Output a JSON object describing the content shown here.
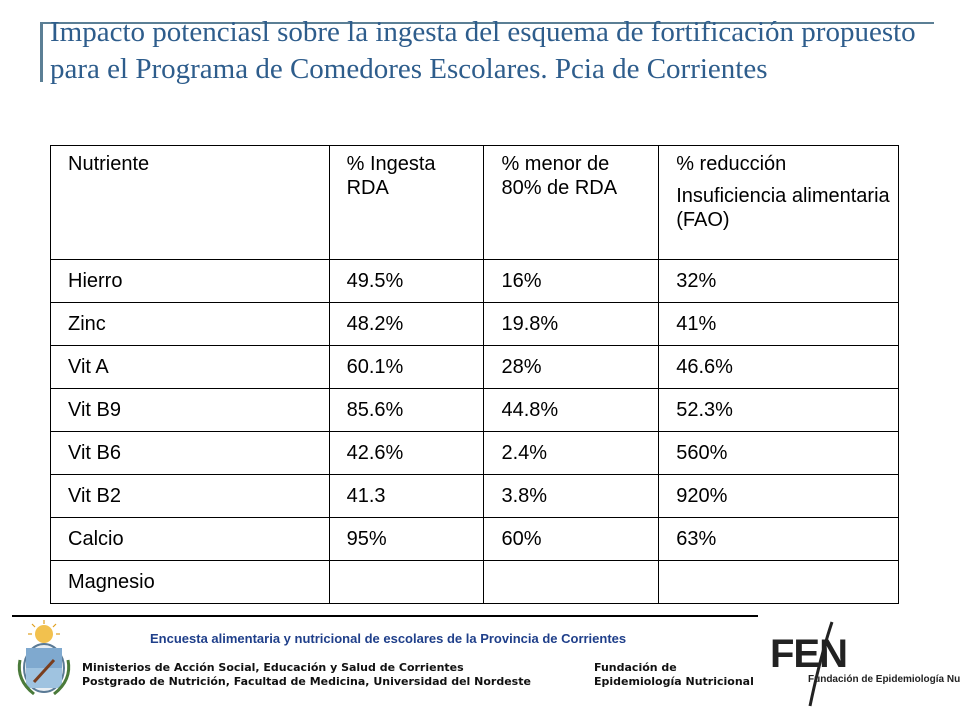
{
  "title": "Impacto potenciasl sobre la ingesta del esquema de fortificación propuesto para el Programa de Comedores Escolares. Pcia de Corrientes",
  "table": {
    "headers": {
      "c1": "Nutriente",
      "c2a": "% Ingesta",
      "c2b": "RDA",
      "c3a": "% menor de",
      "c3b": "80% de RDA",
      "c4a": "% reducción",
      "c4b": "Insuficiencia alimentaria (FAO)"
    },
    "rows": [
      [
        "Hierro",
        "49.5%",
        "16%",
        "32%"
      ],
      [
        "Zinc",
        "48.2%",
        "19.8%",
        "41%"
      ],
      [
        "Vit A",
        "60.1%",
        "28%",
        "46.6%"
      ],
      [
        "Vit B9",
        "85.6%",
        "44.8%",
        "52.3%"
      ],
      [
        "Vit B6",
        "42.6%",
        "2.4%",
        "560%"
      ],
      [
        "Vit B2",
        "41.3",
        "3.8%",
        "920%"
      ],
      [
        "Calcio",
        "95%",
        "60%",
        "63%"
      ],
      [
        "Magnesio",
        "",
        "",
        ""
      ]
    ]
  },
  "footer": {
    "title": "Encuesta alimentaria y  nutricional de escolares de la Provincia de Corrientes",
    "left_line1": "Ministerios de Acción Social, Educación y Salud de Corrientes",
    "left_line2": "Postgrado de Nutrición, Facultad de Medicina, Universidad del Nordeste",
    "right_line1": "Fundación de",
    "right_line2": "Epidemiología Nutricional",
    "logo_word": "FEN",
    "logo_sub": "Fundación de Epidemiología Nutricional"
  },
  "colors": {
    "title": "#2e5d8c",
    "accent_line": "#5b7f95",
    "footer_title": "#1f3f8a"
  }
}
